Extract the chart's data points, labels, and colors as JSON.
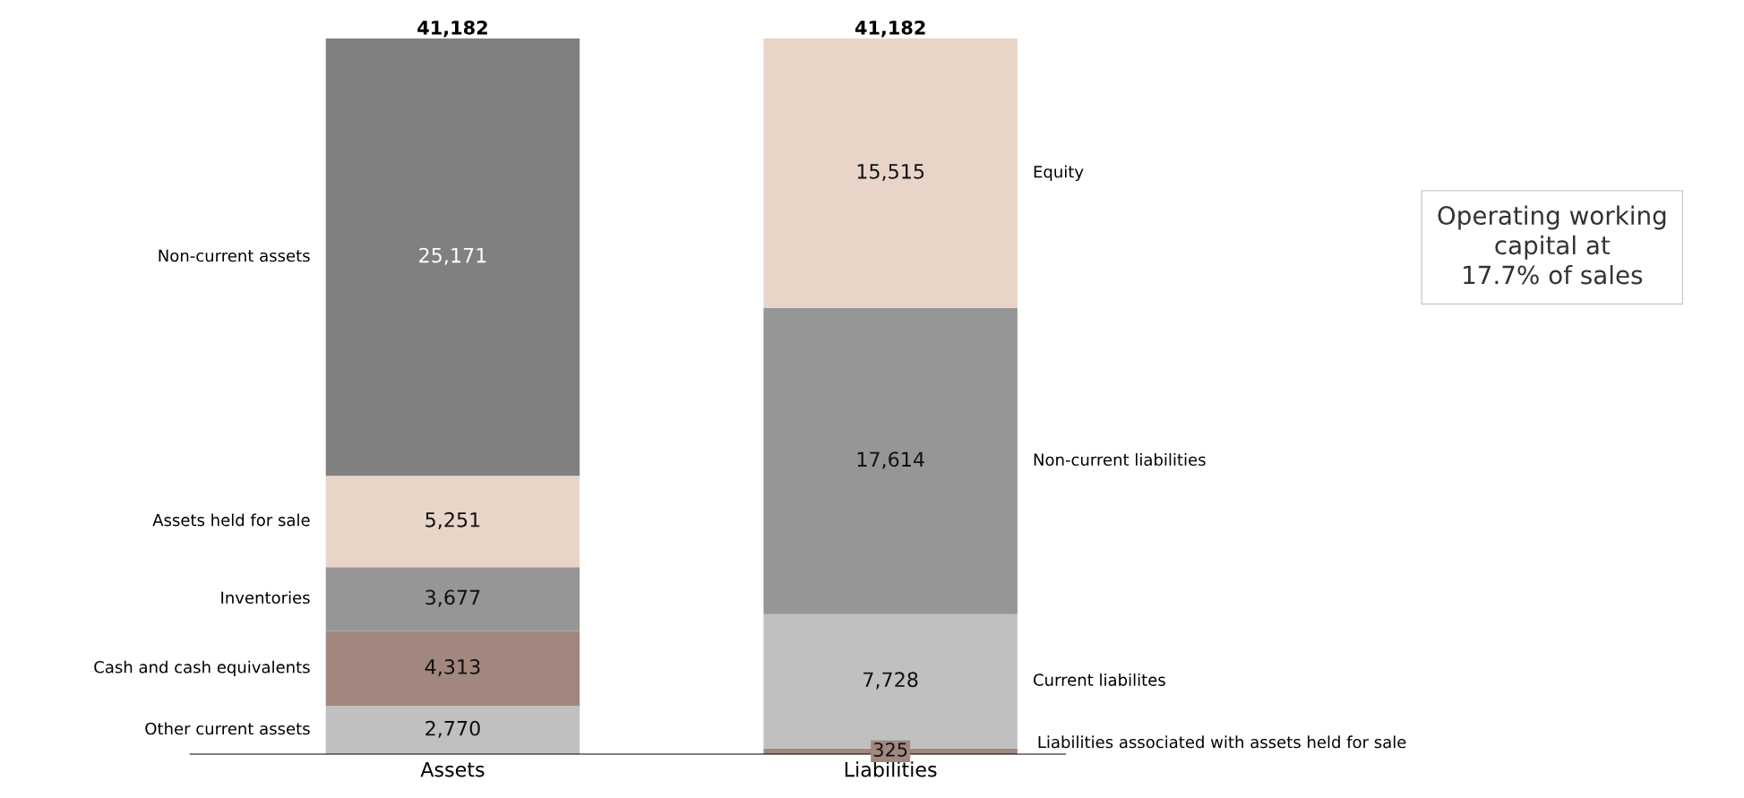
{
  "chart_data": {
    "type": "bar",
    "stacked": true,
    "categories": [
      "Assets",
      "Liabilities"
    ],
    "tick_labels": "x",
    "grid": false,
    "legend": false,
    "series": [
      {
        "name": "Other current assets",
        "color": "#c0c0c0",
        "values": [
          2770,
          null
        ],
        "value_labels": [
          "2,770",
          null
        ]
      },
      {
        "name": "Cash and cash equivalents",
        "color": "#a1877e",
        "values": [
          4313,
          null
        ],
        "value_labels": [
          "4,313",
          null
        ]
      },
      {
        "name": "Inventories",
        "color": "#969696",
        "values": [
          3677,
          null
        ],
        "value_labels": [
          "3,677",
          null
        ]
      },
      {
        "name": "Assets held for sale",
        "color": "#e8d5c8",
        "values": [
          5251,
          null
        ],
        "value_labels": [
          "5,251",
          null
        ]
      },
      {
        "name": "Non-current assets",
        "color": "#808080",
        "values": [
          25171,
          null
        ],
        "value_labels": [
          "25,171",
          null
        ]
      },
      {
        "name": "Liabilities associated with assets held for sale",
        "color": "#a1877e",
        "values": [
          null,
          325
        ],
        "value_labels": [
          null,
          "325"
        ]
      },
      {
        "name": "Current liabilites",
        "color": "#c0c0c0",
        "values": [
          null,
          7728
        ],
        "value_labels": [
          null,
          "7,728"
        ]
      },
      {
        "name": "Non-current liabilities",
        "color": "#969696",
        "values": [
          null,
          17614
        ],
        "value_labels": [
          null,
          "17,614"
        ]
      },
      {
        "name": "Equity",
        "color": "#e8d5c8",
        "values": [
          null,
          15515
        ],
        "value_labels": [
          null,
          "15,515"
        ]
      }
    ],
    "totals": [
      "41,182",
      "41,182"
    ],
    "annotations": [
      "Operating working\ncapital at\n17.7% of sales"
    ]
  }
}
